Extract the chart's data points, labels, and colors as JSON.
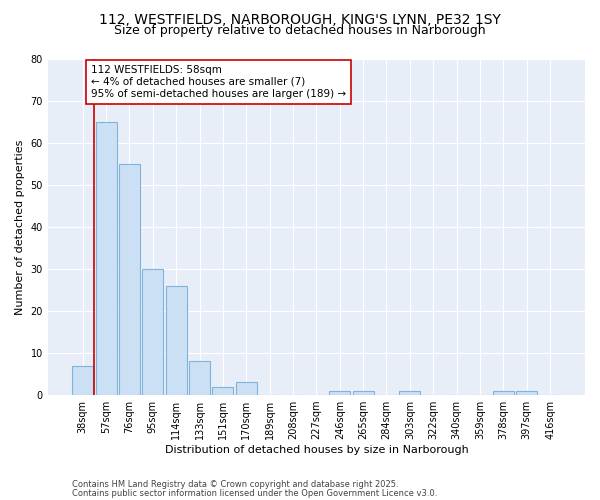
{
  "title1": "112, WESTFIELDS, NARBOROUGH, KING'S LYNN, PE32 1SY",
  "title2": "Size of property relative to detached houses in Narborough",
  "xlabel": "Distribution of detached houses by size in Narborough",
  "ylabel": "Number of detached properties",
  "categories": [
    "38sqm",
    "57sqm",
    "76sqm",
    "95sqm",
    "114sqm",
    "133sqm",
    "151sqm",
    "170sqm",
    "189sqm",
    "208sqm",
    "227sqm",
    "246sqm",
    "265sqm",
    "284sqm",
    "303sqm",
    "322sqm",
    "340sqm",
    "359sqm",
    "378sqm",
    "397sqm",
    "416sqm"
  ],
  "values": [
    7,
    65,
    55,
    30,
    26,
    8,
    2,
    3,
    0,
    0,
    0,
    1,
    1,
    0,
    1,
    0,
    0,
    0,
    1,
    1,
    0
  ],
  "bar_color": "#cce0f5",
  "bar_edge_color": "#7fb3d9",
  "vline_x_index": 1,
  "vline_color": "#cc0000",
  "annotation_text": "112 WESTFIELDS: 58sqm\n← 4% of detached houses are smaller (7)\n95% of semi-detached houses are larger (189) →",
  "annotation_box_color": "#ffffff",
  "annotation_box_edge": "#cc0000",
  "ylim": [
    0,
    80
  ],
  "yticks": [
    0,
    10,
    20,
    30,
    40,
    50,
    60,
    70,
    80
  ],
  "footer1": "Contains HM Land Registry data © Crown copyright and database right 2025.",
  "footer2": "Contains public sector information licensed under the Open Government Licence v3.0.",
  "bg_color": "#ffffff",
  "plot_bg_color": "#e8eef8",
  "grid_color": "#ffffff",
  "title_fontsize": 10,
  "subtitle_fontsize": 9,
  "tick_fontsize": 7,
  "axis_label_fontsize": 8,
  "annotation_fontsize": 7.5,
  "footer_fontsize": 6
}
